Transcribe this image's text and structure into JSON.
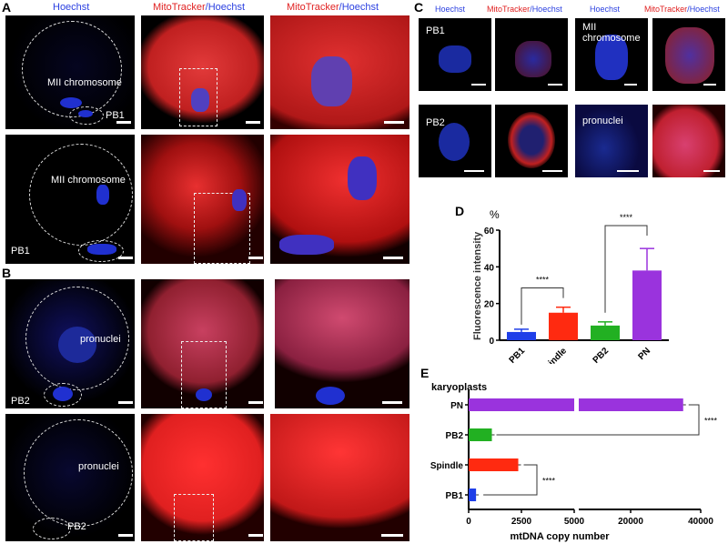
{
  "panels": {
    "A": "A",
    "B": "B",
    "C": "C",
    "D": "D",
    "E": "E"
  },
  "headers": {
    "hoechst": "Hoechst",
    "mito": "MitoTracker",
    "slash": "/",
    "hoechst2": "Hoechst"
  },
  "labels": {
    "mii": "MII chromosome",
    "pb1": "PB1",
    "pb2": "PB2",
    "pronuclei": "pronuclei",
    "mii_c1": "MII",
    "mii_c2": "chromosome"
  },
  "colors": {
    "PB1": "#1f3fe8",
    "Spindle": "#ff2a10",
    "PB2": "#22b022",
    "PN": "#9a33dd"
  },
  "chart_data": [
    {
      "type": "bar",
      "panel": "D",
      "categories": [
        "PB1",
        "Spindle",
        "PB2",
        "PN"
      ],
      "values": [
        4.5,
        15,
        8,
        38
      ],
      "errors": [
        1.5,
        3,
        2,
        12
      ],
      "ylabel": "Fluorescence intensity",
      "yunit": "%",
      "ylim": [
        0,
        60
      ],
      "yticks": [
        0,
        20,
        40,
        60
      ],
      "significance": [
        {
          "pair": [
            "PB1",
            "Spindle"
          ],
          "label": "****"
        },
        {
          "pair": [
            "PB2",
            "PN"
          ],
          "label": "****"
        }
      ]
    },
    {
      "type": "bar",
      "orientation": "horizontal",
      "panel": "E",
      "title": "karyoplasts",
      "categories": [
        "PN",
        "PB2",
        "Spindle",
        "PB1"
      ],
      "values": [
        35000,
        1100,
        2350,
        350
      ],
      "xlabel": "mtDNA copy number",
      "xticks": [
        0,
        2500,
        5000,
        20000,
        40000
      ],
      "axis_break": [
        5000,
        5000
      ],
      "significance": [
        {
          "pair": [
            "PN",
            "PB2"
          ],
          "label": "****"
        },
        {
          "pair": [
            "Spindle",
            "PB1"
          ],
          "label": "****"
        }
      ]
    }
  ]
}
